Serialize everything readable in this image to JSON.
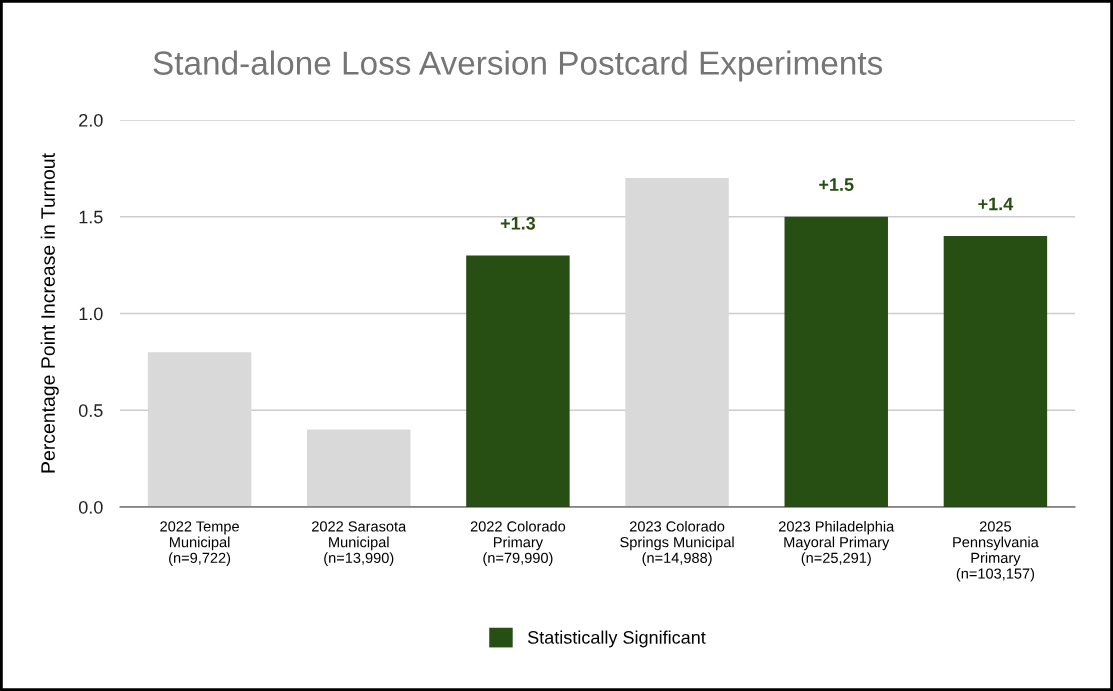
{
  "chart_data": {
    "type": "bar",
    "title": "Stand-alone Loss Aversion Postcard Experiments",
    "ylabel": "Percentage Point Increase in Turnout",
    "categories": [
      "2022 Tempe\nMunicipal\n(n=9,722)",
      "2022 Sarasota\nMunicipal\n(n=13,990)",
      "2022 Colorado\nPrimary\n(n=79,990)",
      "2023 Colorado\nSprings Municipal\n(n=14,988)",
      "2023 Philadelphia\nMayoral Primary\n(n=25,291)",
      "2025\nPennsylvania\nPrimary\n(n=103,157)"
    ],
    "series": [
      {
        "color": "#d9d9d9",
        "values": [
          0.8,
          0.4,
          null,
          1.7,
          null,
          null
        ]
      },
      {
        "name": "Statistically Significant",
        "color": "#274e13",
        "values": [
          null,
          null,
          1.3,
          null,
          1.5,
          1.4
        ],
        "value_labels": [
          null,
          null,
          "+1.3",
          null,
          "+1.5",
          "+1.4"
        ]
      }
    ],
    "ylim": [
      0,
      2.0
    ],
    "yticks": [
      {
        "value": 0,
        "label": "0.0"
      },
      {
        "value": 0.5,
        "label": "0.5"
      },
      {
        "value": 1.0,
        "label": "1.0"
      },
      {
        "value": 1.5,
        "label": "1.5"
      },
      {
        "value": 2.0,
        "label": "2.0"
      }
    ],
    "grid": "y",
    "legend": "bottom"
  }
}
